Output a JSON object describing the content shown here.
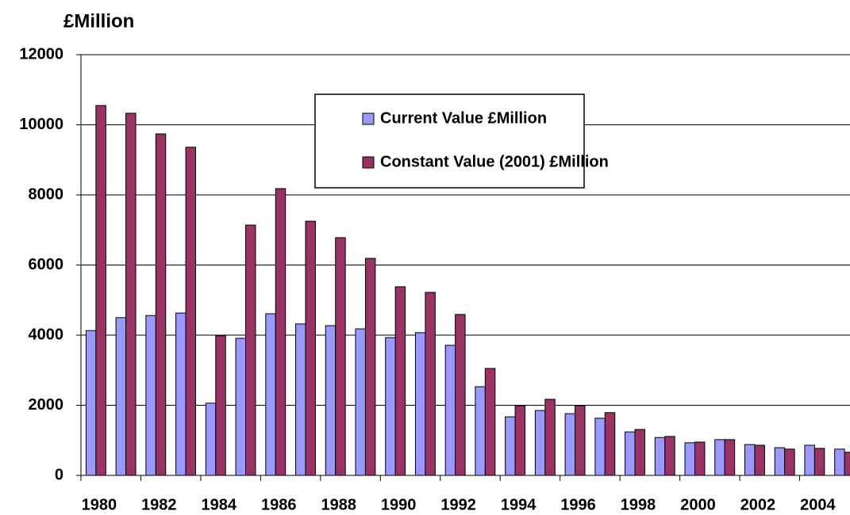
{
  "chart_data": {
    "type": "bar",
    "ylabel": "£Million",
    "categories": [
      "1980",
      null,
      "1982",
      null,
      "1984",
      null,
      "1986",
      null,
      "1988",
      null,
      "1990",
      null,
      "1992",
      null,
      "1994",
      null,
      "1996",
      null,
      "1998",
      null,
      "2000",
      null,
      "2002",
      null,
      "2004",
      null
    ],
    "series": [
      {
        "name": "Current Value £Million",
        "color": "#9999ff",
        "values": [
          4130,
          4500,
          4560,
          4630,
          2060,
          3910,
          4610,
          4320,
          4270,
          4180,
          3930,
          4070,
          3710,
          2530,
          1670,
          1850,
          1760,
          1630,
          1240,
          1080,
          930,
          1020,
          880,
          790,
          860,
          750
        ]
      },
      {
        "name": "Constant Value (2001) £Million",
        "color": "#993366",
        "values": [
          10550,
          10330,
          9740,
          9360,
          3980,
          7140,
          8180,
          7250,
          6780,
          6190,
          5380,
          5220,
          4590,
          3050,
          1990,
          2170,
          1990,
          1790,
          1310,
          1110,
          950,
          1020,
          860,
          750,
          770,
          660
        ]
      }
    ],
    "ylim": [
      0,
      12000
    ],
    "yticks": [
      0,
      2000,
      4000,
      6000,
      8000,
      10000,
      12000
    ],
    "grid": true
  }
}
